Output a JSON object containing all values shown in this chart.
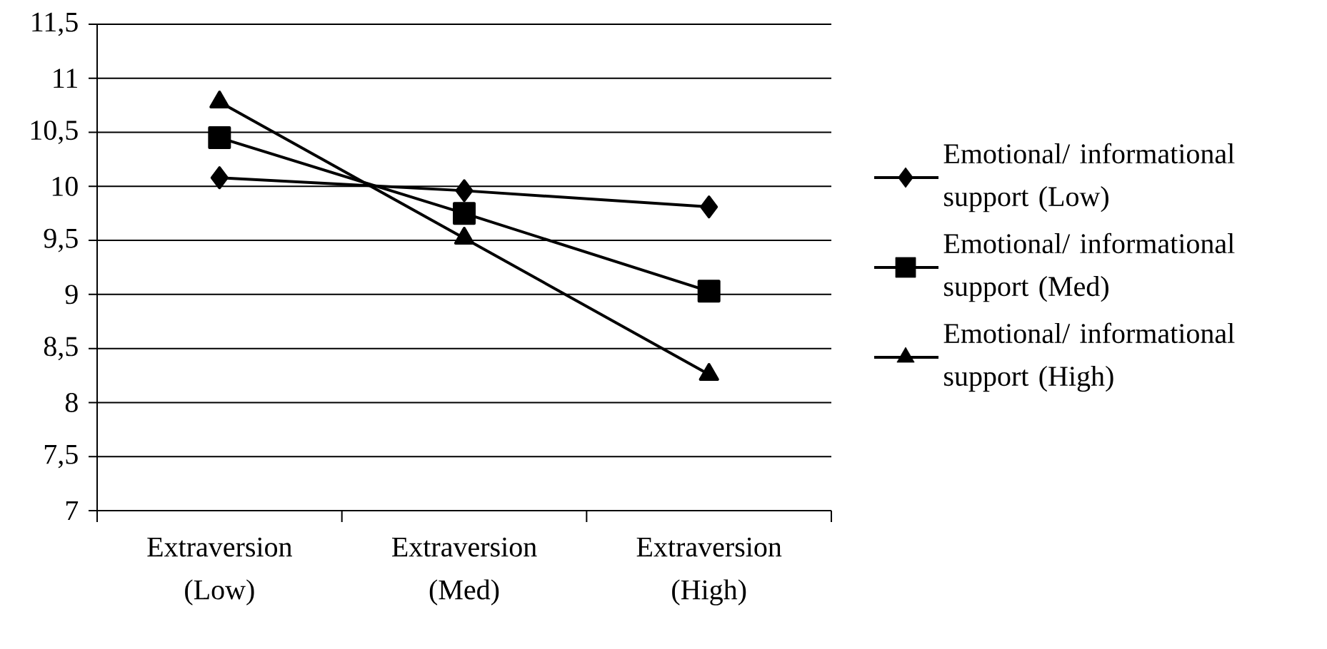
{
  "chart_data": {
    "type": "line",
    "categories": [
      "Extraversion (Low)",
      "Extraversion (Med)",
      "Extraversion (High)"
    ],
    "series": [
      {
        "name": "Emotional/ informational support (Low)",
        "color": "#000000",
        "marker": "diamond",
        "values": [
          10.08,
          9.96,
          9.81
        ]
      },
      {
        "name": "Emotional/ informational support (Med)",
        "color": "#000000",
        "marker": "square",
        "values": [
          10.45,
          9.75,
          9.03
        ]
      },
      {
        "name": "Emotional/ informational support (High)",
        "color": "#000000",
        "marker": "triangle",
        "values": [
          10.78,
          9.52,
          8.26
        ]
      }
    ],
    "ylim": [
      7,
      11.5
    ],
    "yticks": [
      7,
      {
        "value": 7.5,
        "label": "7,5"
      },
      8,
      {
        "value": 8.5,
        "label": "8,5"
      },
      9,
      {
        "value": 9.5,
        "label": "9,5"
      },
      10,
      {
        "value": 10.5,
        "label": "10,5"
      },
      11,
      {
        "value": 11.5,
        "label": "11,5"
      }
    ],
    "grid": "y",
    "legend": "right",
    "line_style": "solid"
  }
}
